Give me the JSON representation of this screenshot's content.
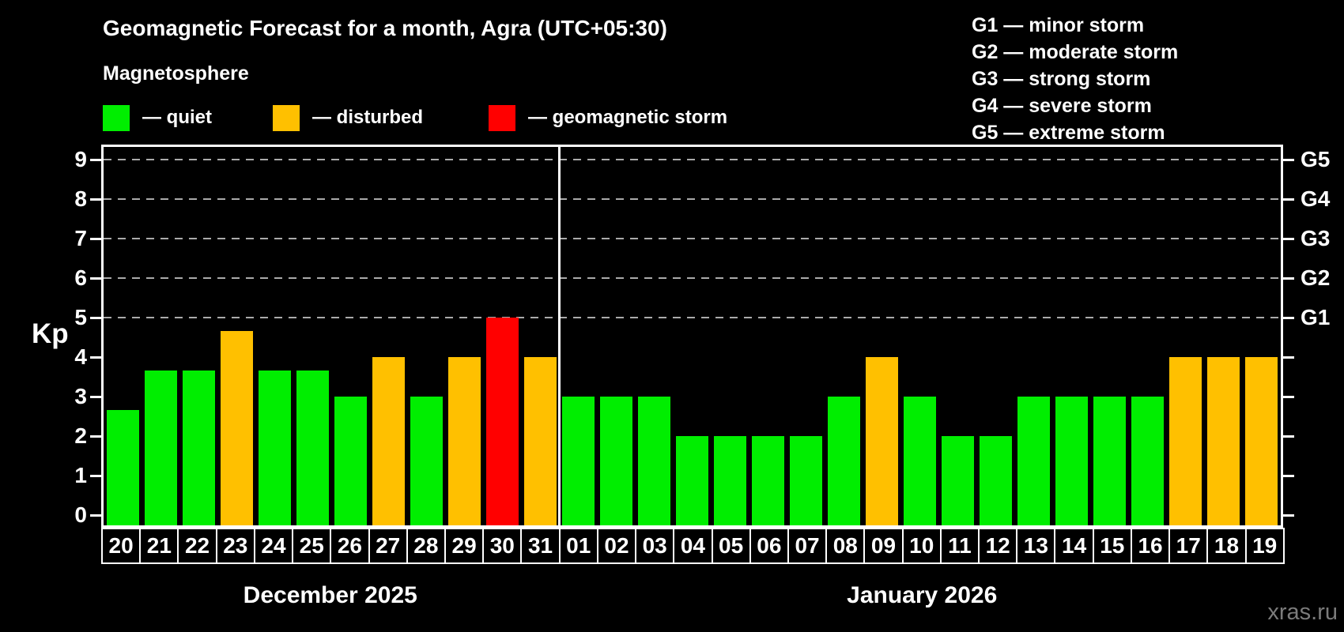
{
  "title": "Geomagnetic Forecast for a month, Agra (UTC+05:30)",
  "subtitle": "Magnetosphere",
  "legend": {
    "quiet": {
      "label": "— quiet",
      "color": "#00ee00"
    },
    "disturbed": {
      "label": "— disturbed",
      "color": "#ffc000"
    },
    "storm": {
      "label": "— geomagnetic storm",
      "color": "#ff0000"
    }
  },
  "g_legend": [
    "G1 — minor storm",
    "G2 — moderate storm",
    "G3 — strong storm",
    "G4 — severe storm",
    "G5 — extreme storm"
  ],
  "watermark": "xras.ru",
  "chart_data": {
    "type": "bar",
    "ylabel": "Kp",
    "ylim": [
      0,
      9
    ],
    "yticks": [
      0,
      1,
      2,
      3,
      4,
      5,
      6,
      7,
      8,
      9
    ],
    "gridlines_at_kp": [
      5,
      6,
      7,
      8,
      9
    ],
    "right_axis_labels": [
      {
        "kp": 5,
        "label": "G1"
      },
      {
        "kp": 6,
        "label": "G2"
      },
      {
        "kp": 7,
        "label": "G3"
      },
      {
        "kp": 8,
        "label": "G4"
      },
      {
        "kp": 9,
        "label": "G5"
      }
    ],
    "status_colors": {
      "quiet": "#00ee00",
      "disturbed": "#ffc000",
      "storm": "#ff0000"
    },
    "sections": [
      {
        "month_label": "December 2025",
        "days": [
          {
            "day": "20",
            "kp": 2.67,
            "status": "quiet"
          },
          {
            "day": "21",
            "kp": 3.67,
            "status": "quiet"
          },
          {
            "day": "22",
            "kp": 3.67,
            "status": "quiet"
          },
          {
            "day": "23",
            "kp": 4.67,
            "status": "disturbed"
          },
          {
            "day": "24",
            "kp": 3.67,
            "status": "quiet"
          },
          {
            "day": "25",
            "kp": 3.67,
            "status": "quiet"
          },
          {
            "day": "26",
            "kp": 3,
            "status": "quiet"
          },
          {
            "day": "27",
            "kp": 4,
            "status": "disturbed"
          },
          {
            "day": "28",
            "kp": 3,
            "status": "quiet"
          },
          {
            "day": "29",
            "kp": 4,
            "status": "disturbed"
          },
          {
            "day": "30",
            "kp": 5,
            "status": "storm"
          },
          {
            "day": "31",
            "kp": 4,
            "status": "disturbed"
          }
        ]
      },
      {
        "month_label": "January 2026",
        "days": [
          {
            "day": "01",
            "kp": 3,
            "status": "quiet"
          },
          {
            "day": "02",
            "kp": 3,
            "status": "quiet"
          },
          {
            "day": "03",
            "kp": 3,
            "status": "quiet"
          },
          {
            "day": "04",
            "kp": 2,
            "status": "quiet"
          },
          {
            "day": "05",
            "kp": 2,
            "status": "quiet"
          },
          {
            "day": "06",
            "kp": 2,
            "status": "quiet"
          },
          {
            "day": "07",
            "kp": 2,
            "status": "quiet"
          },
          {
            "day": "08",
            "kp": 3,
            "status": "quiet"
          },
          {
            "day": "09",
            "kp": 4,
            "status": "disturbed"
          },
          {
            "day": "10",
            "kp": 3,
            "status": "quiet"
          },
          {
            "day": "11",
            "kp": 2,
            "status": "quiet"
          },
          {
            "day": "12",
            "kp": 2,
            "status": "quiet"
          },
          {
            "day": "13",
            "kp": 3,
            "status": "quiet"
          },
          {
            "day": "14",
            "kp": 3,
            "status": "quiet"
          },
          {
            "day": "15",
            "kp": 3,
            "status": "quiet"
          },
          {
            "day": "16",
            "kp": 3,
            "status": "quiet"
          },
          {
            "day": "17",
            "kp": 4,
            "status": "disturbed"
          },
          {
            "day": "18",
            "kp": 4,
            "status": "disturbed"
          },
          {
            "day": "19",
            "kp": 4,
            "status": "disturbed"
          }
        ]
      }
    ]
  }
}
